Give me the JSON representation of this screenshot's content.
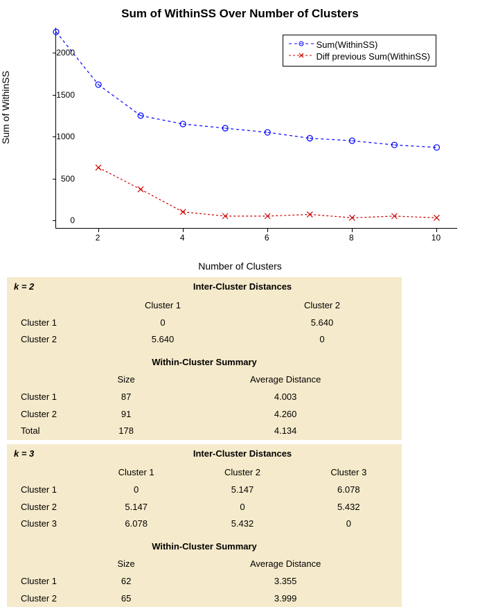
{
  "chart": {
    "title": "Sum of WithinSS Over Number of Clusters",
    "ylabel": "Sum of WithinSS",
    "xlabel": "Number of Clusters",
    "x_ticks": [
      2,
      4,
      6,
      8,
      10
    ],
    "y_ticks": [
      0,
      500,
      1000,
      1500,
      2000
    ],
    "xlim": [
      1,
      10.5
    ],
    "ylim": [
      -100,
      2300
    ],
    "series1": {
      "name": "Sum(WithinSS)",
      "color": "#0000ff",
      "dash": "4 4",
      "marker": "circle",
      "x": [
        1,
        2,
        3,
        4,
        5,
        6,
        7,
        8,
        9,
        10
      ],
      "y": [
        2250,
        1620,
        1250,
        1150,
        1100,
        1050,
        980,
        950,
        900,
        870
      ]
    },
    "series2": {
      "name": "Diff previous Sum(WithinSS)",
      "color": "#cc0000",
      "dash": "3 3",
      "marker": "x",
      "x": [
        2,
        3,
        4,
        5,
        6,
        7,
        8,
        9,
        10
      ],
      "y": [
        630,
        370,
        100,
        50,
        50,
        70,
        30,
        50,
        30
      ]
    }
  },
  "k2": {
    "label": "k = 2",
    "inter_title": "Inter-Cluster Distances",
    "inter_cols": [
      "Cluster 1",
      "Cluster 2"
    ],
    "inter_rows": [
      {
        "label": "Cluster 1",
        "cells": [
          "0",
          "5.640"
        ]
      },
      {
        "label": "Cluster 2",
        "cells": [
          "5.640",
          "0"
        ]
      }
    ],
    "within_title": "Within-Cluster Summary",
    "within_cols": [
      "Size",
      "Average Distance"
    ],
    "within_rows": [
      {
        "label": "Cluster 1",
        "cells": [
          "87",
          "4.003"
        ]
      },
      {
        "label": "Cluster 2",
        "cells": [
          "91",
          "4.260"
        ]
      },
      {
        "label": "Total",
        "cells": [
          "178",
          "4.134"
        ]
      }
    ]
  },
  "k3": {
    "label": "k = 3",
    "inter_title": "Inter-Cluster Distances",
    "inter_cols": [
      "Cluster 1",
      "Cluster 2",
      "Cluster 3"
    ],
    "inter_rows": [
      {
        "label": "Cluster 1",
        "cells": [
          "0",
          "5.147",
          "6.078"
        ]
      },
      {
        "label": "Cluster 2",
        "cells": [
          "5.147",
          "0",
          "5.432"
        ]
      },
      {
        "label": "Cluster 3",
        "cells": [
          "6.078",
          "5.432",
          "0"
        ]
      }
    ],
    "within_title": "Within-Cluster Summary",
    "within_cols": [
      "Size",
      "Average Distance"
    ],
    "within_rows": [
      {
        "label": "Cluster 1",
        "cells": [
          "62",
          "3.355"
        ]
      },
      {
        "label": "Cluster 2",
        "cells": [
          "65",
          "3.999"
        ]
      }
    ]
  }
}
